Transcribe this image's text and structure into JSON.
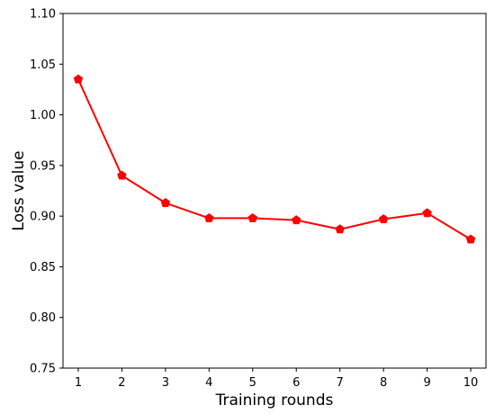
{
  "chart_data": {
    "type": "line",
    "title": "",
    "xlabel": "Training rounds",
    "ylabel": "Loss value",
    "x": [
      1,
      2,
      3,
      4,
      5,
      6,
      7,
      8,
      9,
      10
    ],
    "xticks": [
      "1",
      "2",
      "3",
      "4",
      "5",
      "6",
      "7",
      "8",
      "9",
      "10"
    ],
    "yticks": [
      "0.75",
      "0.80",
      "0.85",
      "0.90",
      "0.95",
      "1.00",
      "1.05",
      "1.10"
    ],
    "ylim": [
      0.75,
      1.1
    ],
    "xlim": [
      0.65,
      10.35
    ],
    "grid": false,
    "series": [
      {
        "color": "#ff0000",
        "marker": "pentagon",
        "values": [
          1.035,
          0.94,
          0.913,
          0.898,
          0.898,
          0.896,
          0.887,
          0.897,
          0.903,
          0.877
        ]
      }
    ]
  }
}
